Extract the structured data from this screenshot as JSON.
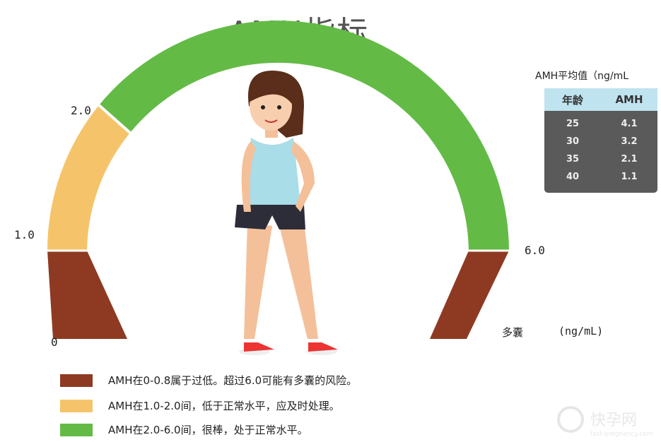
{
  "title": "AMH指标",
  "scale_labels": {
    "zero": "0",
    "one": "1.0",
    "two": "2.0",
    "six": "6.0",
    "pcos": "多囊",
    "unit": "(ng/mL)"
  },
  "colors": {
    "low": "#8e3a22",
    "borderline": "#f5c46a",
    "normal": "#63bb46"
  },
  "average_table": {
    "title": "AMH平均值（ng/mL",
    "headers": [
      "年龄",
      "AMH"
    ],
    "rows": [
      [
        "25",
        "4.1"
      ],
      [
        "30",
        "3.2"
      ],
      [
        "35",
        "2.1"
      ],
      [
        "40",
        "1.1"
      ]
    ]
  },
  "legend": [
    {
      "color": "#8e3a22",
      "text": "AMH在0-0.8属于过低。超过6.0可能有多囊的风险。"
    },
    {
      "color": "#f5c46a",
      "text": "AMH在1.0-2.0间，低于正常水平，应及时处理。"
    },
    {
      "color": "#63bb46",
      "text": "AMH在2.0-6.0间，很棒，处于正常水平。"
    }
  ],
  "watermark": {
    "name": "快孕网",
    "site": "fast-pregnancy.com"
  }
}
